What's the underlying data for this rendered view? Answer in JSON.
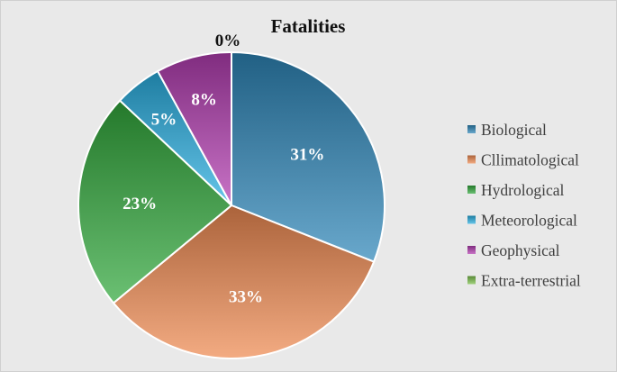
{
  "chart_data": {
    "type": "pie",
    "title": "Fatalities",
    "categories": [
      "Biological",
      "Cllimatological",
      "Hydrological",
      "Meteorological",
      "Geophysical",
      "Extra-terrestrial"
    ],
    "values": [
      31,
      33,
      23,
      5,
      8,
      0
    ],
    "data_labels": [
      "31%",
      "33%",
      "23%",
      "5%",
      "8%",
      "0%"
    ],
    "unit": "%",
    "colors": [
      "#2e86b8",
      "#ee8a52",
      "#32a83c",
      "#2aaee0",
      "#b23db0",
      "#7cc04c"
    ],
    "legend_position": "right",
    "start_angle": "12 o'clock, clockwise"
  }
}
